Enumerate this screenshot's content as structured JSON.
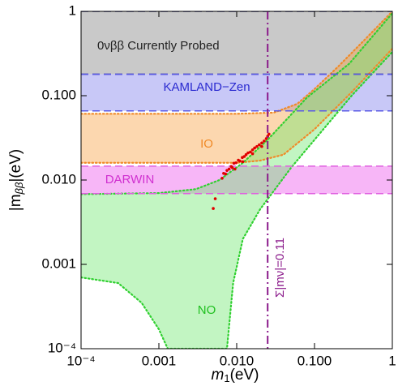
{
  "chart_data": {
    "type": "area",
    "xscale": "log",
    "yscale": "log",
    "xlim": [
      0.0001,
      1
    ],
    "ylim": [
      0.0001,
      1
    ],
    "xticks": [
      {
        "value": 0.0001,
        "label": "10⁻⁴"
      },
      {
        "value": 0.001,
        "label": "0.001"
      },
      {
        "value": 0.01,
        "label": "0.010"
      },
      {
        "value": 0.1,
        "label": "0.100"
      },
      1
    ],
    "yticks": [
      {
        "value": 0.0001,
        "label": "10⁻⁴"
      },
      {
        "value": 0.001,
        "label": "0.001"
      },
      {
        "value": 0.01,
        "label": "0.010"
      },
      {
        "value": 0.1,
        "label": "0.100"
      },
      1
    ],
    "xlabel": [
      "m",
      "1",
      "(eV)"
    ],
    "ylabel": [
      "|m",
      "ββ",
      "|(eV)"
    ],
    "bands": [
      {
        "label": "0νββ Currently Probed",
        "range": [
          0.18,
          1
        ],
        "color": "#c9c9c9",
        "edge": "#1a1a6e"
      },
      {
        "label": "KAMLAND−Zen",
        "range": [
          0.066,
          0.18
        ],
        "color": "#c8c8f7",
        "edge": "#5a5ae6"
      },
      {
        "label": "DARWIN",
        "range": [
          0.0069,
          0.0146
        ],
        "color": "#f7b6f7",
        "edge": "#e060e0"
      }
    ],
    "regions": [
      {
        "label": "IO",
        "color": "#f7a040",
        "line": "#f08a28",
        "upper": {
          "x": [
            0.0001,
            0.01,
            0.03,
            0.06,
            0.1,
            0.2,
            0.4,
            1
          ],
          "y": [
            0.061,
            0.061,
            0.063,
            0.08,
            0.12,
            0.22,
            0.42,
            1
          ]
        },
        "lower": {
          "x": [
            0.0001,
            0.01,
            0.02,
            0.04,
            0.1,
            0.3,
            1
          ],
          "y": [
            0.016,
            0.016,
            0.017,
            0.02,
            0.04,
            0.11,
            0.36
          ]
        }
      },
      {
        "label": "NO",
        "color": "#6ee86e",
        "line": "#30d030",
        "upper": {
          "x": [
            0.0001,
            0.001,
            0.003,
            0.006,
            0.012,
            0.025,
            0.08,
            0.28,
            1
          ],
          "y": [
            0.0068,
            0.007,
            0.0078,
            0.01,
            0.016,
            0.03,
            0.095,
            0.24,
            0.95
          ]
        },
        "lower": {
          "x": [
            0.0001,
            0.0003,
            0.0006,
            0.001,
            0.0013,
            0.0075,
            0.009,
            0.012,
            0.02,
            0.05,
            0.1,
            0.3,
            1
          ],
          "y": [
            0.0007,
            0.0006,
            0.00035,
            0.00017,
            0.0001,
            0.0001,
            0.0006,
            0.002,
            0.0045,
            0.014,
            0.03,
            0.1,
            0.33
          ]
        }
      }
    ],
    "vline": {
      "x": 0.025,
      "label": "Σ|mν|=0.11",
      "color": "#8b1a8b"
    },
    "points": {
      "color": "#e00000",
      "x": [
        0.005,
        0.0053,
        0.0065,
        0.0068,
        0.0072,
        0.0075,
        0.008,
        0.0085,
        0.0088,
        0.0092,
        0.0098,
        0.0105,
        0.011,
        0.0118,
        0.0125,
        0.0132,
        0.014,
        0.015,
        0.016,
        0.017,
        0.0182,
        0.0195,
        0.021,
        0.0225,
        0.024,
        0.025,
        0.026,
        0.0095,
        0.012,
        0.016,
        0.021
      ],
      "y": [
        0.0046,
        0.006,
        0.0105,
        0.012,
        0.0118,
        0.013,
        0.0135,
        0.0145,
        0.014,
        0.0158,
        0.016,
        0.0172,
        0.0168,
        0.0185,
        0.019,
        0.02,
        0.021,
        0.0215,
        0.0228,
        0.024,
        0.025,
        0.0262,
        0.0275,
        0.029,
        0.031,
        0.033,
        0.035,
        0.0135,
        0.0165,
        0.0205,
        0.025
      ]
    }
  }
}
